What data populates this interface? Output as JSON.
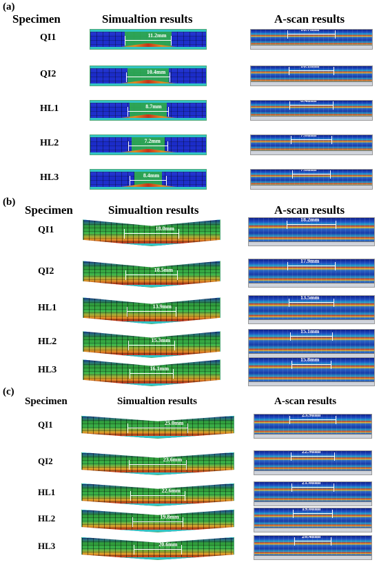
{
  "panels": [
    {
      "label": "(a)",
      "headers": {
        "specimen": "Specimen",
        "simulation": "Simualtion results",
        "ascan": "A-scan results"
      },
      "rows": [
        {
          "specimen": "QI1",
          "sim_value": "11.2mm",
          "ascan_value": "10.7mm"
        },
        {
          "specimen": "QI2",
          "sim_value": "10.4mm",
          "ascan_value": "10.1mm"
        },
        {
          "specimen": "HL1",
          "sim_value": "8.7mm",
          "ascan_value": "8.4mm"
        },
        {
          "specimen": "HL2",
          "sim_value": "7.2mm",
          "ascan_value": "7.0mm"
        },
        {
          "specimen": "HL3",
          "sim_value": "8.4mm",
          "ascan_value": "7.8mm"
        }
      ]
    },
    {
      "label": "(b)",
      "headers": {
        "specimen": "Specimen",
        "simulation": "Simualtion results",
        "ascan": "A-scan results"
      },
      "rows": [
        {
          "specimen": "QI1",
          "sim_value": "18.0mm",
          "ascan_value": "18.2mm"
        },
        {
          "specimen": "QI2",
          "sim_value": "18.5mm",
          "ascan_value": "17.9mm"
        },
        {
          "specimen": "HL1",
          "sim_value": "13.9mm",
          "ascan_value": "13.5mm"
        },
        {
          "specimen": "HL2",
          "sim_value": "15.3mm",
          "ascan_value": "15.1mm"
        },
        {
          "specimen": "HL3",
          "sim_value": "16.1mm",
          "ascan_value": "15.8mm"
        }
      ]
    },
    {
      "label": "(c)",
      "headers": {
        "specimen": "Specimen",
        "simulation": "Simualtion results",
        "ascan": "A-scan results"
      },
      "rows": [
        {
          "specimen": "QI1",
          "sim_value": "25.0mm",
          "ascan_value": "23.9mm"
        },
        {
          "specimen": "QI2",
          "sim_value": "23.6mm",
          "ascan_value": "22.9mm"
        },
        {
          "specimen": "HL1",
          "sim_value": "22.6mm",
          "ascan_value": "21.6mm"
        },
        {
          "specimen": "HL2",
          "sim_value": "19.8mm",
          "ascan_value": "19.6mm"
        },
        {
          "specimen": "HL3",
          "sim_value": "20.6mm",
          "ascan_value": "20.4mm"
        }
      ]
    }
  ],
  "colors": {
    "simulation_base": "#1a2bc8",
    "damage_core": "#2fb04a",
    "damage_edge": "#e08a22",
    "ascan_base": "#1f4fc4",
    "measure_line": "#ffffff"
  }
}
